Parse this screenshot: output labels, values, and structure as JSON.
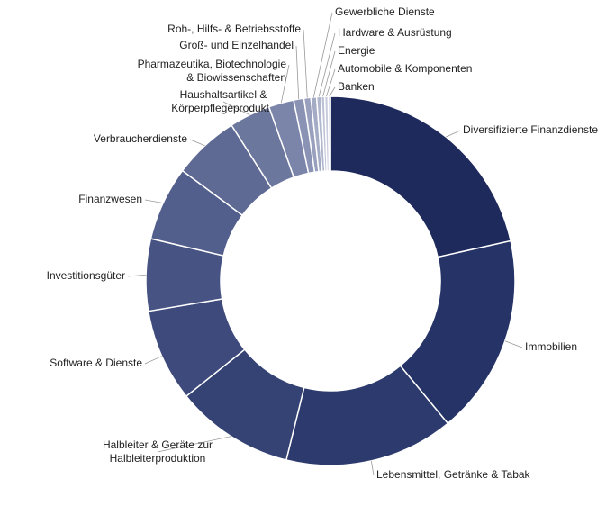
{
  "chart_data": {
    "type": "donut",
    "categories": [
      [
        "Diversifizierte Finanzdienste"
      ],
      [
        "Immobilien"
      ],
      [
        "Lebensmittel, Getränke & Tabak"
      ],
      [
        "Halbleiter & Geräte zur",
        "Halbleiterproduktion"
      ],
      [
        "Software & Dienste"
      ],
      [
        "Investitionsgüter"
      ],
      [
        "Finanzwesen"
      ],
      [
        "Verbraucherdienste"
      ],
      [
        "Haushaltsartikel &",
        "Körperpflegeprodukte"
      ],
      [
        "Pharmazeutika, Biotechnologie",
        "& Biowissenschaften"
      ],
      [
        "Groß- und Einzelhandel"
      ],
      [
        "Roh-, Hilfs- & Betriebsstoffe"
      ],
      [
        "Gewerbliche Dienste"
      ],
      [
        "Hardware & Ausrüstung"
      ],
      [
        "Energie"
      ],
      [
        "Automobile & Komponenten"
      ],
      [
        "Banken"
      ]
    ],
    "values": [
      21.5,
      17.5,
      14.8,
      10.4,
      8.1,
      6.3,
      6.5,
      5.8,
      3.6,
      2.2,
      0.9,
      0.6,
      0.5,
      0.4,
      0.3,
      0.3,
      0.2
    ],
    "colors": [
      "#1e2a5c",
      "#253366",
      "#2d3a6d",
      "#354374",
      "#3d4a7b",
      "#475483",
      "#525e8b",
      "#5f6a94",
      "#6c779e",
      "#7b85a9",
      "#8a93b4",
      "#98a0bd",
      "#a4abc5",
      "#b0b6cd",
      "#bcc1d5",
      "#c7cbdc",
      "#d2d5e3"
    ]
  }
}
